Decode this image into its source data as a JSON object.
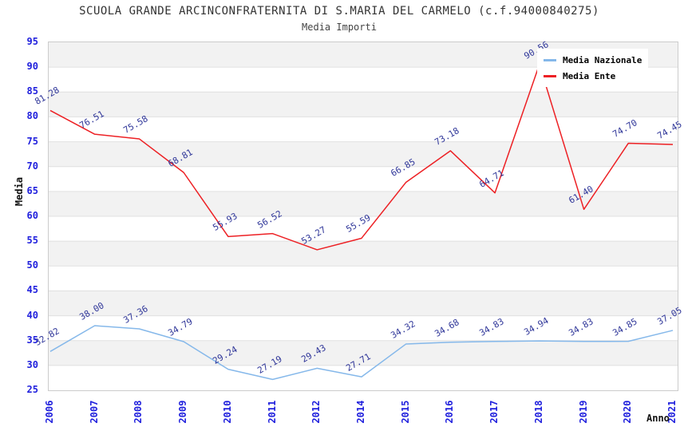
{
  "page": {
    "title": "SCUOLA GRANDE ARCINCONFRATERNITA DI S.MARIA DEL CARMELO (c.f.94000840275)",
    "subtitle": "Media Importi"
  },
  "chart_data": {
    "type": "line",
    "title": "SCUOLA GRANDE ARCINCONFRATERNITA DI S.MARIA DEL CARMELO (c.f.94000840275)",
    "subtitle": "Media Importi",
    "categories": [
      "2006",
      "2007",
      "2008",
      "2009",
      "2010",
      "2011",
      "2012",
      "2014",
      "2015",
      "2016",
      "2017",
      "2018",
      "2019",
      "2020",
      "2021"
    ],
    "series": [
      {
        "name": "Media Nazionale",
        "color": "#85b8ea",
        "values": [
          32.82,
          38.0,
          37.36,
          34.79,
          29.24,
          27.19,
          29.43,
          27.71,
          34.32,
          34.68,
          34.83,
          34.94,
          34.83,
          34.85,
          37.05
        ]
      },
      {
        "name": "Media Ente",
        "color": "#ed2024",
        "values": [
          81.28,
          76.51,
          75.58,
          68.81,
          55.93,
          56.52,
          53.27,
          55.59,
          66.85,
          73.18,
          64.71,
          90.56,
          61.4,
          74.7,
          74.45
        ]
      }
    ],
    "xlabel": "Anno",
    "ylabel": "Media",
    "ylim": [
      25,
      95
    ],
    "ytick_step": 5,
    "grid": true,
    "legend_position": "top-right",
    "data_label_rotation_deg": -30
  },
  "colors": {
    "axis_text": "#2020dd",
    "data_label": "#2f3699",
    "band": "#f2f2f2",
    "gridline": "#e0e0e0",
    "plot_border": "#cccccc",
    "title_text": "#333333"
  }
}
